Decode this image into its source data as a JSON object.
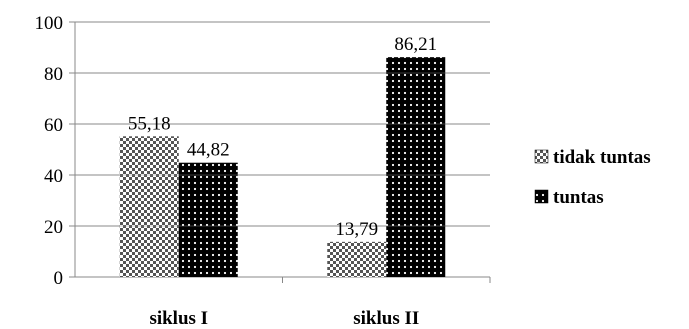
{
  "chart_data": {
    "type": "bar",
    "categories": [
      "siklus I",
      "siklus II"
    ],
    "series": [
      {
        "name": "tidak tuntas",
        "values": [
          55.18,
          13.79
        ],
        "labels": [
          "55,18",
          "13,79"
        ],
        "pattern": "checker"
      },
      {
        "name": "tuntas",
        "values": [
          44.82,
          86.21
        ],
        "labels": [
          "44,82",
          "86,21"
        ],
        "pattern": "dots"
      }
    ],
    "title": "",
    "xlabel": "",
    "ylabel": "",
    "ylim": [
      0,
      100
    ],
    "yticks": [
      0,
      20,
      40,
      60,
      80,
      100
    ],
    "grid": true,
    "legend": "right",
    "colors": {
      "bar_dark": "#000000",
      "bar_light": "#ffffff",
      "grid": "#888888",
      "text": "#000000"
    }
  }
}
